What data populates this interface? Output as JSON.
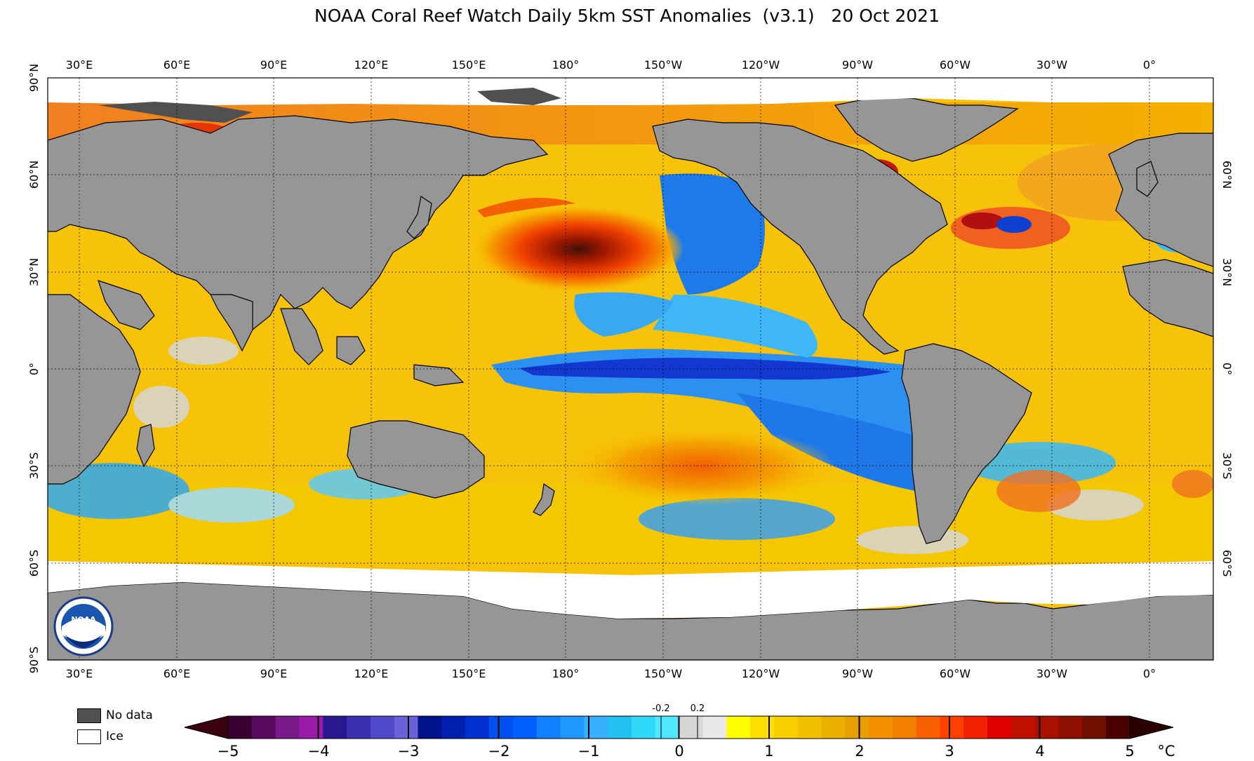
{
  "title": "NOAA Coral Reef Watch Daily 5km SST Anomalies  (v3.1)   20 Oct 2021",
  "map": {
    "lon_labels": [
      "30°E",
      "60°E",
      "90°E",
      "120°E",
      "150°E",
      "180°",
      "150°W",
      "120°W",
      "90°W",
      "60°W",
      "30°W",
      "0°"
    ],
    "lat_labels_left": [
      "90°N",
      "60°N",
      "30°N",
      "0°",
      "30°S",
      "60°S",
      "90°S"
    ],
    "lat_labels_right": [
      "60°N",
      "30°N",
      "0°",
      "30°S",
      "60°S"
    ],
    "colors": {
      "land": "#969696",
      "no_data": "#505050",
      "ice": "#ffffff",
      "neutral": "#dcdcdc",
      "warm": "#f5c000",
      "hot": "#e04000",
      "cool": "#20b8f0",
      "cold": "#1030d0"
    }
  },
  "legend": {
    "no_data": "No data",
    "ice": "Ice"
  },
  "colorbar": {
    "labels": [
      "−5",
      "−4",
      "−3",
      "−2",
      "−1",
      "0",
      "1",
      "2",
      "3",
      "4",
      "5"
    ],
    "neutral_low": "-0.2",
    "neutral_high": "0.2",
    "unit": "°C",
    "colors": [
      "#3a0030",
      "#5a0a5e",
      "#7a1a8a",
      "#9a1aaa",
      "#2a1890",
      "#3a30b0",
      "#5048c8",
      "#6a60d8",
      "#00128a",
      "#0020b0",
      "#0030d0",
      "#0050f0",
      "#0060ff",
      "#1080ff",
      "#2098ff",
      "#38b0ff",
      "#20c0f0",
      "#30d8f8",
      "#50e8ff",
      "#d6d6d6",
      "#e8e8e8",
      "#ffff00",
      "#fde000",
      "#f8d000",
      "#f2c000",
      "#ecb000",
      "#e6a000",
      "#f29000",
      "#f48000",
      "#f86000",
      "#ff4000",
      "#f02000",
      "#e00000",
      "#c01000",
      "#a81000",
      "#901000",
      "#701000",
      "#4a0000"
    ]
  },
  "logo": {
    "text": "NOAA"
  }
}
